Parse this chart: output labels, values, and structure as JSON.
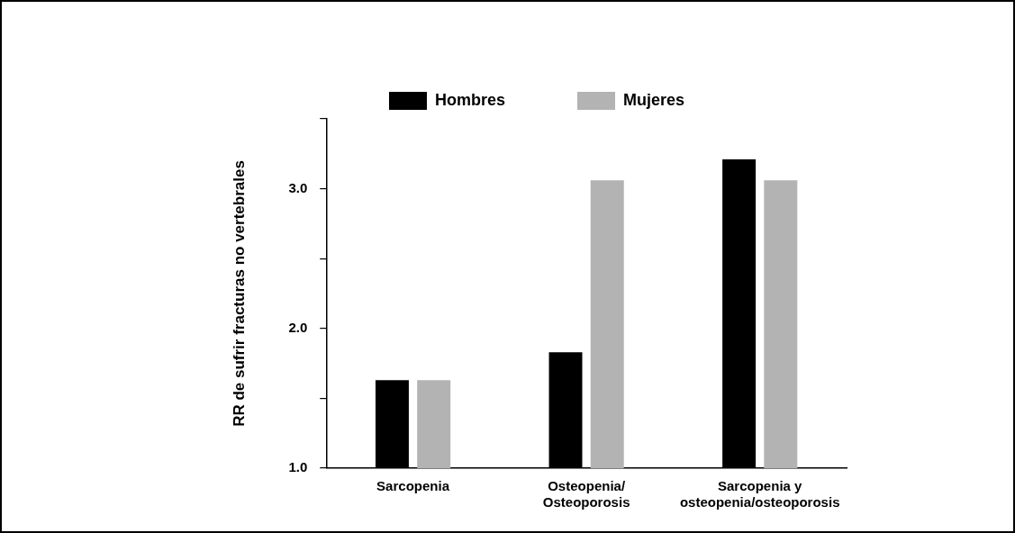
{
  "chart_data": {
    "type": "bar",
    "ylabel": "RR de sufrir fracturas no vertebrales",
    "categories": [
      "Sarcopenia",
      "Osteopenia/\nOsteoporosis",
      "Sarcopenia y\nosteopenia/osteoporosis"
    ],
    "series": [
      {
        "name": "Hombres",
        "color": "#000000",
        "values": [
          1.63,
          1.83,
          3.21
        ]
      },
      {
        "name": "Mujeres",
        "color": "#b3b3b3",
        "values": [
          1.63,
          3.06,
          3.06
        ]
      }
    ],
    "ylim": [
      1,
      3.5
    ],
    "yticks": [
      {
        "value": 1,
        "label": "1.0"
      },
      {
        "value": 1.5,
        "label": null
      },
      {
        "value": 2,
        "label": "2.0"
      },
      {
        "value": 2.5,
        "label": null
      },
      {
        "value": 3,
        "label": "3.0"
      },
      {
        "value": 3.5,
        "label": null
      }
    ],
    "grid": false,
    "legend": "top"
  }
}
